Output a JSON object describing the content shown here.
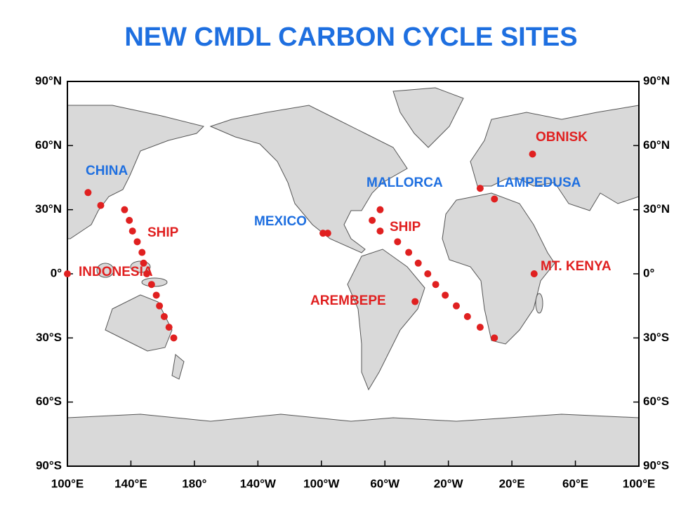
{
  "title": "NEW CMDL CARBON CYCLE SITES",
  "map": {
    "xlim": [
      100,
      460
    ],
    "ylim": [
      -90,
      90
    ],
    "xticks": [
      {
        "value": 100,
        "label": "100°E"
      },
      {
        "value": 140,
        "label": "140°E"
      },
      {
        "value": 180,
        "label": "180°"
      },
      {
        "value": 220,
        "label": "140°W"
      },
      {
        "value": 260,
        "label": "100°W"
      },
      {
        "value": 300,
        "label": "60°W"
      },
      {
        "value": 340,
        "label": "20°W"
      },
      {
        "value": 380,
        "label": "20°E"
      },
      {
        "value": 420,
        "label": "60°E"
      },
      {
        "value": 460,
        "label": "100°E"
      }
    ],
    "yticks": [
      {
        "value": 90,
        "label": "90°N"
      },
      {
        "value": 60,
        "label": "60°N"
      },
      {
        "value": 30,
        "label": "30°N"
      },
      {
        "value": 0,
        "label": "0°"
      },
      {
        "value": -30,
        "label": "30°S"
      },
      {
        "value": -60,
        "label": "60°S"
      },
      {
        "value": -90,
        "label": "90°S"
      }
    ],
    "point_color": "#e02020",
    "sites": [
      {
        "label": "CHINA",
        "label_color": "#1e6fe0",
        "lon": [
          113,
          121
        ],
        "lat": [
          38,
          32
        ]
      },
      {
        "label": "SHIP",
        "label_color": "#e02020",
        "lon": [
          136,
          139,
          141,
          144,
          147,
          148,
          150,
          153,
          156,
          158,
          161,
          164,
          167
        ],
        "lat": [
          30,
          25,
          20,
          15,
          10,
          5,
          0,
          -5,
          -10,
          -15,
          -20,
          -25,
          -30
        ]
      },
      {
        "label": "INDONESIA",
        "label_color": "#e02020",
        "lon": [
          100
        ],
        "lat": [
          0
        ]
      },
      {
        "label": "MEXICO",
        "label_color": "#1e6fe0",
        "lon": [
          261,
          264
        ],
        "lat": [
          19,
          19
        ]
      },
      {
        "label": "AREMBEPE",
        "label_color": "#e02020",
        "lon": [
          319
        ],
        "lat": [
          -13
        ]
      },
      {
        "label": "SHIP",
        "label_color": "#e02020",
        "lon": [
          297,
          292,
          297,
          308,
          315,
          321,
          327,
          332,
          338,
          345,
          352,
          360,
          369
        ],
        "lat": [
          30,
          25,
          20,
          15,
          10,
          5,
          0,
          -5,
          -10,
          -15,
          -20,
          -25,
          -30
        ]
      },
      {
        "label": "MALLORCA",
        "label_color": "#1e6fe0",
        "lon": [
          360
        ],
        "lat": [
          40
        ]
      },
      {
        "label": "LAMPEDUSA",
        "label_color": "#1e6fe0",
        "lon": [
          369
        ],
        "lat": [
          35
        ]
      },
      {
        "label": "OBNISK",
        "label_color": "#e02020",
        "lon": [
          393
        ],
        "lat": [
          56
        ]
      },
      {
        "label": "MT. KENYA",
        "label_color": "#e02020",
        "lon": [
          394
        ],
        "lat": [
          0
        ]
      }
    ]
  }
}
